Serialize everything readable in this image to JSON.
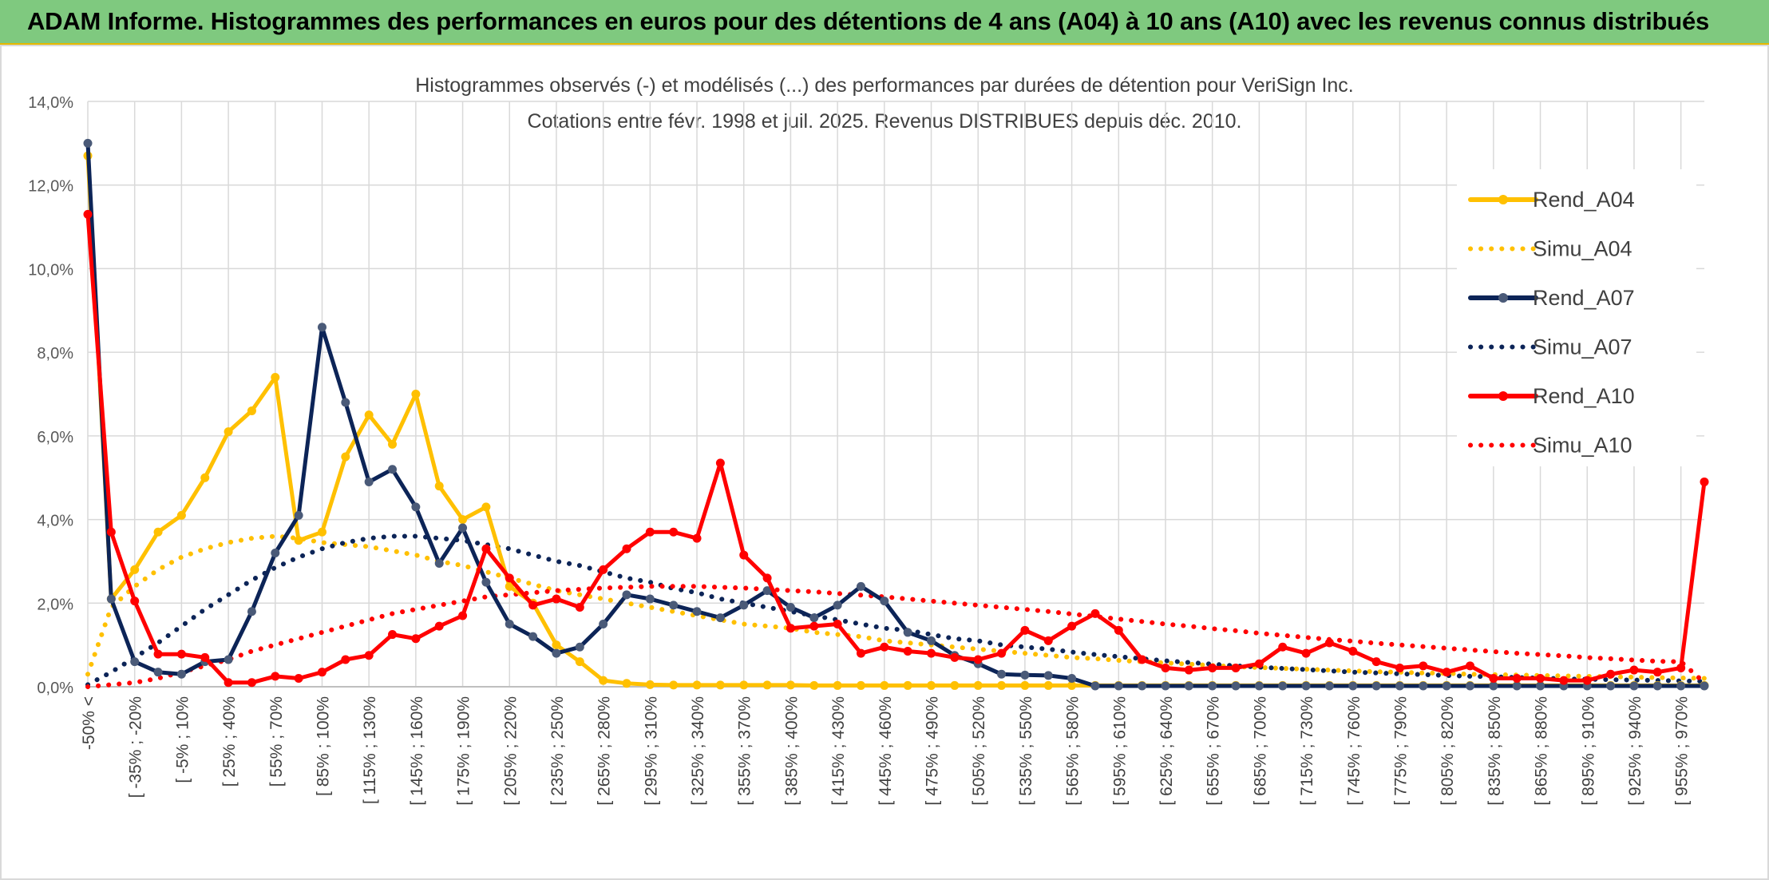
{
  "header": {
    "title": "ADAM Informe. Histogrammes des performances en euros pour des détentions de 4 ans (A04) à 10 ans (A10) avec les revenus connus distribués"
  },
  "chart_data": {
    "type": "line",
    "title": "Histogrammes observés (-) et modélisés (...) des performances par durées de détention pour VeriSign Inc.",
    "subtitle": "Cotations entre févr. 1998 et juil. 2025. Revenus DISTRIBUES depuis déc. 2010.",
    "ylim": [
      0,
      14
    ],
    "yticks": [
      "0,0%",
      "2,0%",
      "4,0%",
      "6,0%",
      "8,0%",
      "10,0%",
      "12,0%",
      "14,0%"
    ],
    "grid": true,
    "legend_position": "right",
    "xticklabels": [
      "-50% <",
      "[ -35% ; -20%",
      "[ -5% ; 10%",
      "[ 25% ; 40%",
      "[ 55% ; 70%",
      "[ 85% ; 100%",
      "[ 115% ; 130%",
      "[ 145% ; 160%",
      "[ 175% ; 190%",
      "[ 205% ; 220%",
      "[ 235% ; 250%",
      "[ 265% ; 280%",
      "[ 295% ; 310%",
      "[ 325% ; 340%",
      "[ 355% ; 370%",
      "[ 385% ; 400%",
      "[ 415% ; 430%",
      "[ 445% ; 460%",
      "[ 475% ; 490%",
      "[ 505% ; 520%",
      "[ 535% ; 550%",
      "[ 565% ; 580%",
      "[ 595% ; 610%",
      "[ 625% ; 640%",
      "[ 655% ; 670%",
      "[ 685% ; 700%",
      "[ 715% ; 730%",
      "[ 745% ; 760%",
      "[ 775% ; 790%",
      "[ 805% ; 820%",
      "[ 835% ; 850%",
      "[ 865% ; 880%",
      "[ 895% ; 910%",
      "[ 925% ; 940%",
      "[ 955% ; 970%"
    ],
    "bin_count": 70,
    "series": [
      {
        "name": "Rend_A04",
        "style": "solid",
        "color": "#ffc000",
        "values": [
          12.7,
          2.1,
          2.8,
          3.7,
          4.1,
          5.0,
          6.1,
          6.6,
          7.4,
          3.5,
          3.7,
          5.5,
          6.5,
          5.8,
          7.0,
          4.8,
          4.0,
          4.3,
          2.4,
          2.0,
          1.0,
          0.6,
          0.15,
          0.08,
          0.05,
          0.04,
          0.04,
          0.04,
          0.04,
          0.04,
          0.04,
          0.03,
          0.03,
          0.03,
          0.03,
          0.03,
          0.03,
          0.03,
          0.03,
          0.03,
          0.03,
          0.03,
          0.03,
          0.03,
          0.03,
          0.03,
          0.03,
          0.03,
          0.03,
          0.03,
          0.03,
          0.03,
          0.03,
          0.03,
          0.03,
          0.03,
          0.03,
          0.03,
          0.03,
          0.03,
          0.03,
          0.03,
          0.03,
          0.03,
          0.03,
          0.03,
          0.03,
          0.03,
          0.03,
          0.03
        ]
      },
      {
        "name": "Simu_A04",
        "style": "dotted",
        "color": "#ffc000",
        "values": [
          0.3,
          1.9,
          2.4,
          2.8,
          3.1,
          3.3,
          3.45,
          3.55,
          3.6,
          3.55,
          3.45,
          3.4,
          3.35,
          3.25,
          3.15,
          3.0,
          2.9,
          2.75,
          2.6,
          2.45,
          2.3,
          2.2,
          2.1,
          2.0,
          1.9,
          1.8,
          1.7,
          1.6,
          1.5,
          1.45,
          1.4,
          1.3,
          1.25,
          1.2,
          1.1,
          1.05,
          1.0,
          0.95,
          0.9,
          0.85,
          0.8,
          0.75,
          0.7,
          0.67,
          0.63,
          0.6,
          0.57,
          0.54,
          0.51,
          0.48,
          0.46,
          0.44,
          0.42,
          0.4,
          0.38,
          0.36,
          0.35,
          0.33,
          0.32,
          0.3,
          0.29,
          0.28,
          0.27,
          0.26,
          0.25,
          0.24,
          0.23,
          0.22,
          0.21,
          0.2
        ]
      },
      {
        "name": "Rend_A07",
        "style": "solid",
        "color": "#0c2457",
        "values": [
          13.0,
          2.1,
          0.6,
          0.35,
          0.3,
          0.6,
          0.65,
          1.8,
          3.2,
          4.1,
          8.6,
          6.8,
          4.9,
          5.2,
          4.3,
          2.95,
          3.8,
          2.5,
          1.5,
          1.2,
          0.8,
          0.95,
          1.5,
          2.2,
          2.1,
          1.95,
          1.8,
          1.65,
          1.95,
          2.3,
          1.9,
          1.65,
          1.95,
          2.4,
          2.05,
          1.3,
          1.1,
          0.75,
          0.55,
          0.3,
          0.28,
          0.27,
          0.2,
          0.02,
          0.02,
          0.02,
          0.02,
          0.02,
          0.02,
          0.02,
          0.02,
          0.02,
          0.02,
          0.02,
          0.02,
          0.02,
          0.02,
          0.02,
          0.02,
          0.02,
          0.02,
          0.02,
          0.02,
          0.02,
          0.02,
          0.02,
          0.02,
          0.02,
          0.02,
          0.02
        ]
      },
      {
        "name": "Simu_A07",
        "style": "dotted",
        "color": "#0c2457",
        "values": [
          0.05,
          0.35,
          0.7,
          1.05,
          1.45,
          1.85,
          2.2,
          2.55,
          2.85,
          3.1,
          3.3,
          3.45,
          3.55,
          3.6,
          3.6,
          3.55,
          3.5,
          3.4,
          3.3,
          3.15,
          3.0,
          2.9,
          2.75,
          2.6,
          2.5,
          2.35,
          2.25,
          2.1,
          2.0,
          1.9,
          1.8,
          1.7,
          1.6,
          1.5,
          1.4,
          1.35,
          1.25,
          1.15,
          1.1,
          1.0,
          0.95,
          0.9,
          0.83,
          0.77,
          0.72,
          0.67,
          0.62,
          0.58,
          0.54,
          0.5,
          0.47,
          0.44,
          0.41,
          0.38,
          0.35,
          0.33,
          0.31,
          0.29,
          0.27,
          0.25,
          0.24,
          0.22,
          0.21,
          0.19,
          0.18,
          0.17,
          0.16,
          0.15,
          0.14,
          0.13
        ]
      },
      {
        "name": "Rend_A10",
        "style": "solid",
        "color": "#ff0000",
        "values": [
          11.3,
          3.7,
          2.05,
          0.78,
          0.78,
          0.7,
          0.1,
          0.1,
          0.25,
          0.2,
          0.35,
          0.65,
          0.75,
          1.25,
          1.15,
          1.45,
          1.7,
          3.3,
          2.6,
          1.95,
          2.1,
          1.9,
          2.8,
          3.3,
          3.7,
          3.7,
          3.55,
          5.35,
          3.15,
          2.6,
          1.4,
          1.45,
          1.5,
          0.8,
          0.95,
          0.85,
          0.8,
          0.7,
          0.65,
          0.8,
          1.35,
          1.1,
          1.45,
          1.75,
          1.35,
          0.65,
          0.45,
          0.4,
          0.45,
          0.45,
          0.55,
          0.95,
          0.8,
          1.05,
          0.85,
          0.6,
          0.45,
          0.5,
          0.35,
          0.5,
          0.2,
          0.2,
          0.2,
          0.15,
          0.15,
          0.3,
          0.4,
          0.35,
          0.45,
          4.9
        ]
      },
      {
        "name": "Simu_A10",
        "style": "dotted",
        "color": "#ff0000",
        "values": [
          0.0,
          0.05,
          0.1,
          0.2,
          0.35,
          0.5,
          0.65,
          0.85,
          1.0,
          1.15,
          1.3,
          1.45,
          1.6,
          1.75,
          1.85,
          1.95,
          2.05,
          2.15,
          2.2,
          2.25,
          2.3,
          2.33,
          2.36,
          2.38,
          2.4,
          2.4,
          2.4,
          2.38,
          2.36,
          2.33,
          2.3,
          2.27,
          2.23,
          2.19,
          2.15,
          2.1,
          2.05,
          2.0,
          1.95,
          1.9,
          1.85,
          1.8,
          1.74,
          1.68,
          1.62,
          1.56,
          1.5,
          1.45,
          1.39,
          1.34,
          1.28,
          1.23,
          1.18,
          1.13,
          1.09,
          1.04,
          1.0,
          0.96,
          0.92,
          0.88,
          0.84,
          0.8,
          0.77,
          0.74,
          0.7,
          0.67,
          0.64,
          0.61,
          0.6,
          0.1
        ]
      }
    ]
  }
}
